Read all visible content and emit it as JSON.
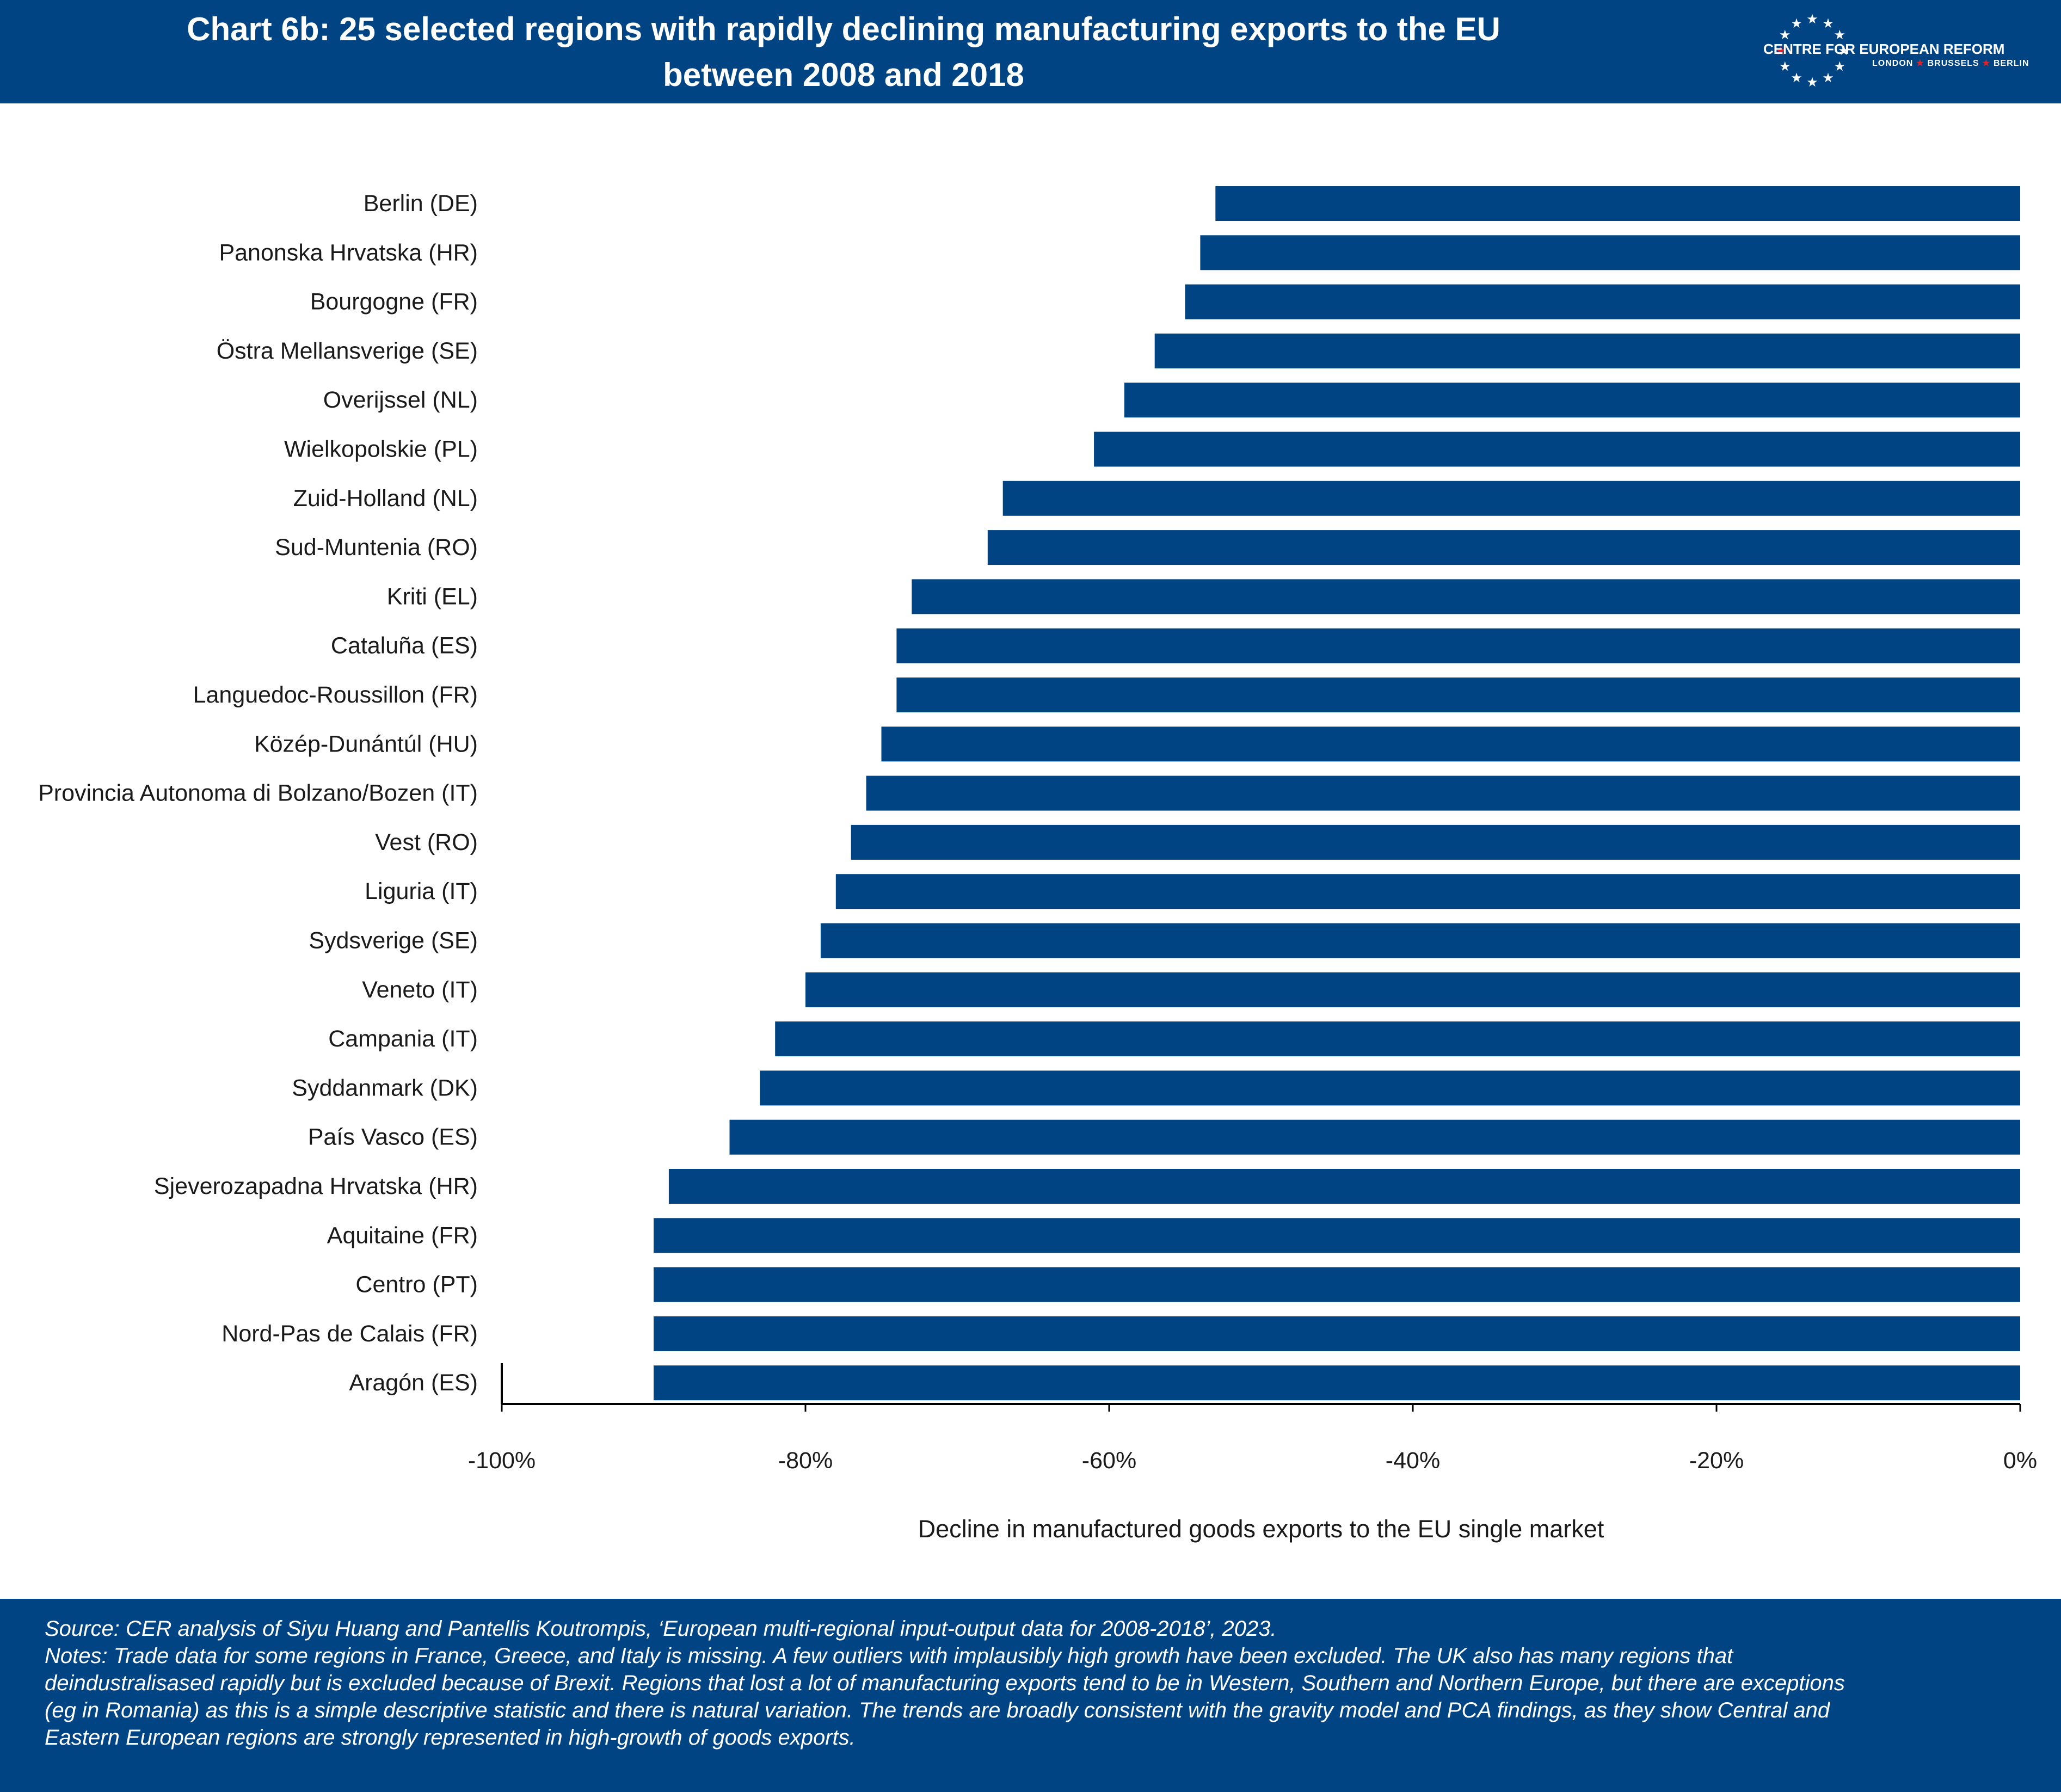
{
  "header": {
    "title_line1": "Chart 6b: 25 selected regions with rapidly declining manufacturing exports  to the EU",
    "title_line2": "between 2008 and 2018",
    "logo_name": "CENTRE FOR EUROPEAN REFORM",
    "logo_city1": "LONDON",
    "logo_city2": "BRUSSELS",
    "logo_city3": "BERLIN",
    "bg_color": "#014483"
  },
  "chart_data": {
    "type": "bar",
    "orientation": "horizontal",
    "categories": [
      "Berlin (DE)",
      "Panonska Hrvatska (HR)",
      "Bourgogne (FR)",
      "Östra Mellansverige (SE)",
      "Overijssel (NL)",
      "Wielkopolskie (PL)",
      "Zuid-Holland (NL)",
      "Sud-Muntenia (RO)",
      "Kriti (EL)",
      "Cataluña (ES)",
      "Languedoc-Roussillon (FR)",
      "Közép-Dunántúl (HU)",
      "Provincia Autonoma di Bolzano/Bozen (IT)",
      "Vest (RO)",
      "Liguria (IT)",
      "Sydsverige (SE)",
      "Veneto (IT)",
      "Campania (IT)",
      "Syddanmark (DK)",
      "País Vasco (ES)",
      "Sjeverozapadna Hrvatska (HR)",
      "Aquitaine (FR)",
      "Centro (PT)",
      "Nord-Pas de Calais (FR)",
      "Aragón (ES)"
    ],
    "values": [
      -53,
      -54,
      -55,
      -57,
      -59,
      -61,
      -67,
      -68,
      -73,
      -74,
      -74,
      -75,
      -76,
      -77,
      -78,
      -79,
      -80,
      -82,
      -83,
      -85,
      -89,
      -90,
      -90,
      -90,
      -90
    ],
    "xlabel": "Decline in  manufactured goods exports to the EU single market",
    "ylabel": "",
    "xlim": [
      -100,
      0
    ],
    "ticks": [
      -100,
      -80,
      -60,
      -40,
      -20,
      0
    ],
    "tick_labels": [
      "-100%",
      "-80%",
      "-60%",
      "-40%",
      "-20%",
      "0%"
    ],
    "bar_color": "#014483",
    "grid": false,
    "legend": "none"
  },
  "footer": {
    "source": "Source: CER analysis of Siyu Huang and Pantellis Koutrompis, ‘European multi-regional input-output data for 2008-2018’, 2023.",
    "notes": [
      "Notes: Trade data for some regions in France, Greece, and Italy is missing. A few outliers with implausibly high growth have been excluded. The UK also has many regions that",
      "deindustralisased rapidly but is excluded because of Brexit. Regions that lost a lot of manufacturing exports tend to be in Western, Southern and Northern Europe, but there are exceptions",
      "(eg in Romania) as this is a simple descriptive statistic and there is natural variation. The trends are broadly consistent with the gravity model and PCA findings, as they show Central and",
      "Eastern European regions are strongly represented in high-growth of goods exports."
    ]
  }
}
